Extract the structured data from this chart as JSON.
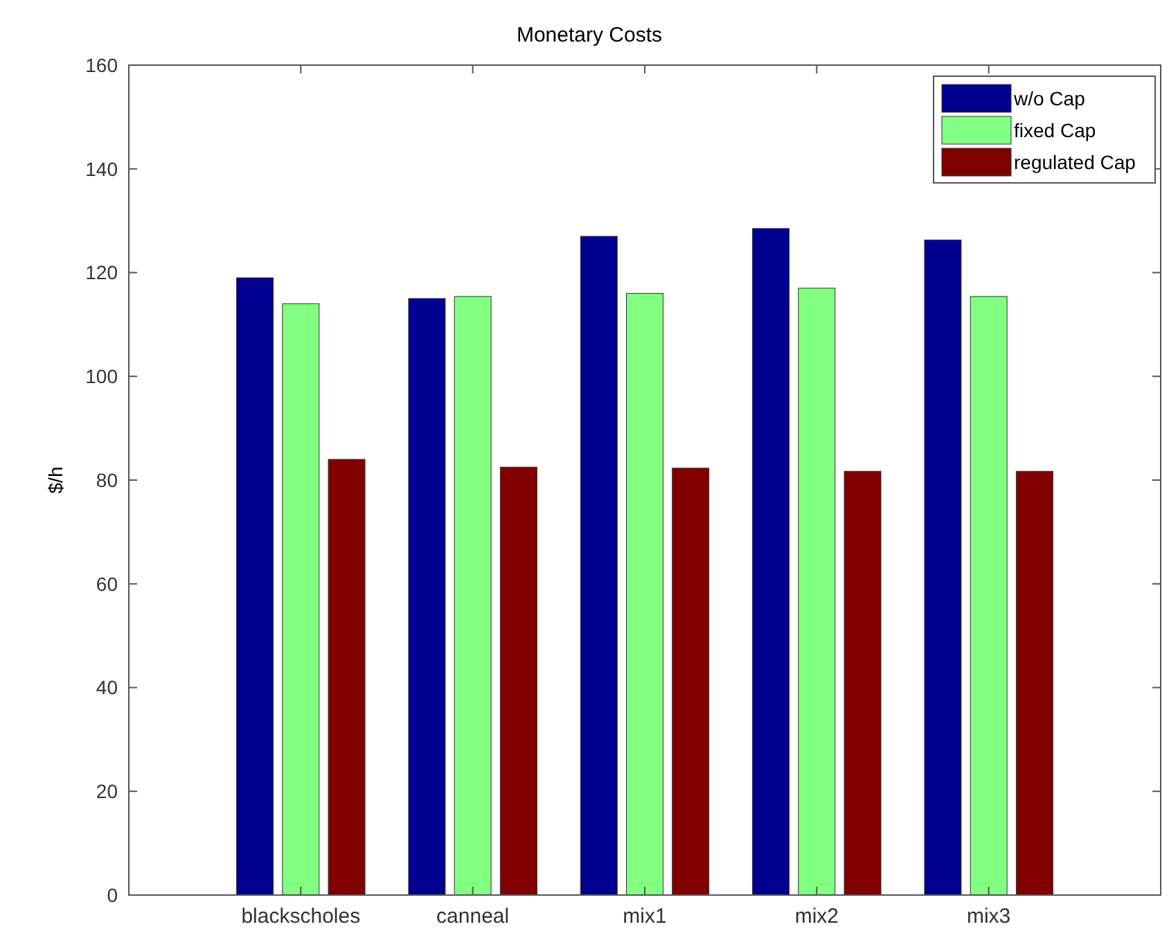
{
  "chart_data": {
    "type": "bar",
    "title": "Monetary Costs",
    "ylabel": "$/h",
    "categories": [
      "blackscholes",
      "canneal",
      "mix1",
      "mix2",
      "mix3"
    ],
    "series": [
      {
        "name": "w/o Cap",
        "color": "#00008f",
        "values": [
          119,
          115,
          127,
          128.5,
          126.3
        ]
      },
      {
        "name": "fixed Cap",
        "color": "#80ff80",
        "values": [
          114,
          115.4,
          116,
          117,
          115.4
        ]
      },
      {
        "name": "regulated Cap",
        "color": "#800000",
        "values": [
          84,
          82.5,
          82.3,
          81.7,
          81.7
        ]
      }
    ],
    "ylim": [
      0,
      160
    ],
    "yticks": [
      0,
      20,
      40,
      60,
      80,
      100,
      120,
      140,
      160
    ],
    "grid": false,
    "legend": "top right"
  }
}
